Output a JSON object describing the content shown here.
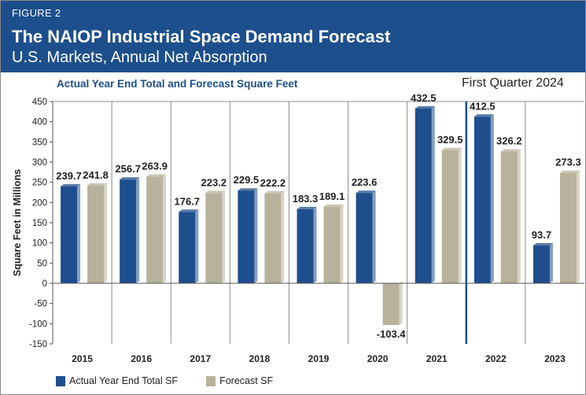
{
  "header": {
    "figure_label": "FIGURE 2",
    "title": "The NAIOP Industrial Space Demand Forecast",
    "subtitle": "U.S. Markets, Annual Net Absorption"
  },
  "chart_subhead": "Actual Year End Total and Forecast Square Feet",
  "quarter_label": "First Quarter 2024",
  "colors": {
    "header_bg": "#1d4f8c",
    "actual": "#1f4e8c",
    "forecast": "#b7b29c"
  },
  "legend": [
    {
      "label": "Actual Year End Total SF",
      "color": "#1f4e8c"
    },
    {
      "label": "Forecast SF",
      "color": "#b7b29c"
    }
  ],
  "chart_data": {
    "type": "bar",
    "categories": [
      "2015",
      "2016",
      "2017",
      "2018",
      "2019",
      "2020",
      "2021",
      "2022",
      "2023"
    ],
    "series": [
      {
        "name": "Actual Year End Total SF",
        "values": [
          239.7,
          256.7,
          176.7,
          229.5,
          183.3,
          223.6,
          432.5,
          412.5,
          93.7
        ]
      },
      {
        "name": "Forecast SF",
        "values": [
          241.8,
          263.9,
          223.2,
          222.2,
          189.1,
          -103.4,
          329.5,
          326.2,
          273.3
        ]
      }
    ],
    "value_labels": {
      "actual": [
        "239.7",
        "256.7",
        "176.7",
        "229.5",
        "183.3",
        "223.6",
        "432.5",
        "412.5",
        "93.7"
      ],
      "forecast": [
        "241.8",
        "263.9",
        "223.2",
        "222.2",
        "189.1",
        "-103.4",
        "329.5",
        "326.2",
        "273.3"
      ]
    },
    "ylabel": "Square Feet in Millions",
    "xlabel": "",
    "ylim": [
      -150,
      450
    ],
    "yticks": [
      450,
      400,
      350,
      300,
      250,
      200,
      150,
      100,
      50,
      0,
      -50,
      -100,
      -150
    ],
    "divider_after_category": "2021",
    "grid": "vertical category separators"
  }
}
